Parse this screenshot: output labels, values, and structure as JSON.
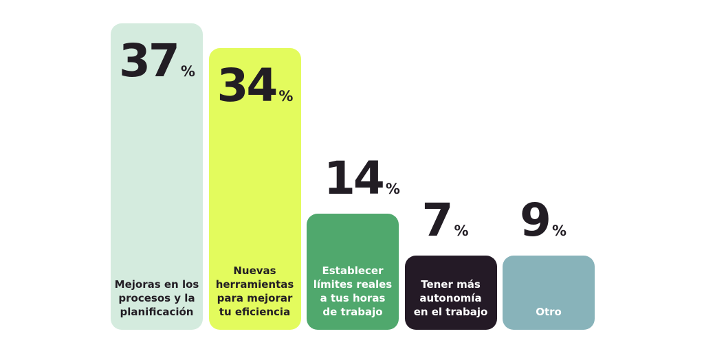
{
  "chart_data": {
    "type": "bar",
    "title": "",
    "xlabel": "",
    "ylabel": "",
    "unit": "%",
    "ylim": [
      0,
      37
    ],
    "grid": false,
    "categories": [
      "Mejoras en los\nprocesos y la\nplanificación",
      "Nuevas\nherramientas\npara mejorar\ntu eficiencia",
      "Establecer\nlímites reales\na tus horas\nde trabajo",
      "Tener más\nautonomía\nen el trabajo",
      "Otro"
    ],
    "values": [
      37,
      34,
      14,
      7,
      9
    ],
    "colors": [
      "#d4ebde",
      "#e3fb5d",
      "#50a86d",
      "#241a26",
      "#88b3ba"
    ],
    "label_colors": [
      "#221d24",
      "#221d24",
      "#ffffff",
      "#ffffff",
      "#ffffff"
    ]
  }
}
